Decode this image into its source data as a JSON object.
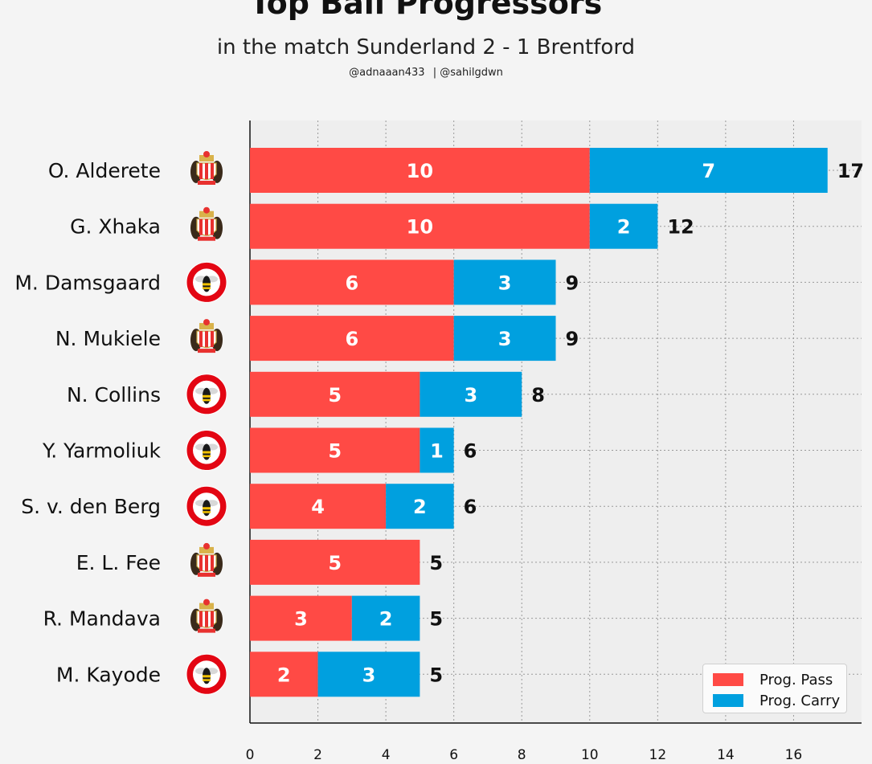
{
  "title": "Top Ball Progressors",
  "subtitle": "in the match Sunderland 2 - 1 Brentford",
  "credits": [
    "@adnaaan433",
    "| @sahilgdwn"
  ],
  "colors": {
    "pass": "#ff4a45",
    "carry": "#00a0df",
    "plot_bg": "#eeeeee",
    "grid": "#9a9a9a",
    "sunderland_red": "#e8312f",
    "brentford_red": "#e30613"
  },
  "legend": {
    "location": "lower-right",
    "items": [
      {
        "label": "Prog. Pass",
        "color": "#ff4a45"
      },
      {
        "label": "Prog. Carry",
        "color": "#00a0df"
      }
    ]
  },
  "chart_data": {
    "type": "bar",
    "orientation": "horizontal",
    "stacked": true,
    "title": "Top Ball Progressors",
    "xlabel": "",
    "ylabel": "",
    "xlim": [
      0,
      18
    ],
    "xticks": [
      0,
      2,
      4,
      6,
      8,
      10,
      12,
      14,
      16
    ],
    "grid": true,
    "categories": [
      "O. Alderete",
      "G. Xhaka",
      "M. Damsgaard",
      "N. Mukiele",
      "N. Collins",
      "Y. Yarmoliuk",
      "S. v. den Berg",
      "E. L. Fee",
      "R. Mandava",
      "M. Kayode"
    ],
    "teams": [
      "sunderland",
      "sunderland",
      "brentford",
      "sunderland",
      "brentford",
      "brentford",
      "brentford",
      "sunderland",
      "sunderland",
      "brentford"
    ],
    "series": [
      {
        "name": "Prog. Pass",
        "values": [
          10,
          10,
          6,
          6,
          5,
          5,
          4,
          5,
          3,
          2
        ]
      },
      {
        "name": "Prog. Carry",
        "values": [
          7,
          2,
          3,
          3,
          3,
          1,
          2,
          0,
          2,
          3
        ]
      }
    ],
    "totals": [
      17,
      12,
      9,
      9,
      8,
      6,
      6,
      5,
      5,
      5
    ]
  }
}
